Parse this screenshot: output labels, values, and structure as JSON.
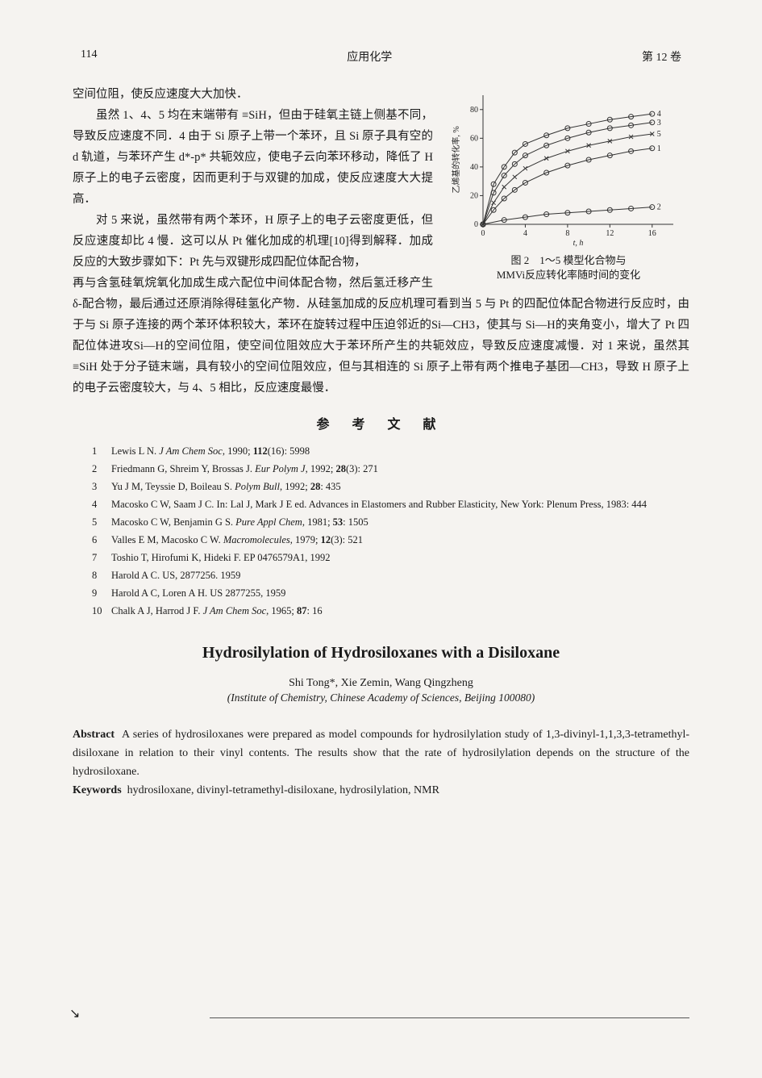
{
  "header": {
    "page": "114",
    "journal": "应用化学",
    "volume": "第 12 卷"
  },
  "paragraphs": {
    "p1": "空间位阻，使反应速度大大加快．",
    "p2": "虽然 1、4、5 均在末端带有 ≡SiH，但由于硅氧主链上侧基不同，导致反应速度不同．4 由于 Si 原子上带一个苯环，且 Si 原子具有空的 d 轨道，与苯环产生 d*-p* 共轭效应，使电子云向苯环移动，降低了 H 原子上的电子云密度，因而更利于与双键的加成，使反应速度大大提高．",
    "p3_left": "对 5 来说，虽然带有两个苯环，H 原子上的电子云密度更低，但反应速度却比 4 慢．这可以从 Pt 催化加成的机理[10]得到解释．加成反应的大致步骤如下：Pt 先与双键形成四配位体配合物，",
    "p3_full": "再与含氢硅氧烷氧化加成生成六配位中间体配合物，然后氢迁移产生 δ-配合物，最后通过还原消除得硅氢化产物．从硅氢加成的反应机理可看到当 5 与 Pt 的四配位体配合物进行反应时，由于与 Si 原子连接的两个苯环体积较大，苯环在旋转过程中压迫邻近的Si—CH3，使其与 Si—H的夹角变小，增大了 Pt 四配位体进攻Si—H的空间位阻，使空间位阻效应大于苯环所产生的共轭效应，导致反应速度减慢．对 1 来说，虽然其 ≡SiH 处于分子链末端，具有较小的空间位阻效应，但与其相连的 Si 原子上带有两个推电子基团—CH3，导致 H 原子上的电子云密度较大，与 4、5 相比，反应速度最慢．"
  },
  "figure": {
    "caption_line1": "图 2　1～5 模型化合物与",
    "caption_line2": "MMVi反应转化率随时间的变化",
    "xlabel": "t, h",
    "ylabel": "乙烯基的转化率, %",
    "xlim": [
      0,
      18
    ],
    "xticks": [
      0,
      4,
      8,
      12,
      16
    ],
    "ylim": [
      0,
      90
    ],
    "yticks": [
      0,
      20,
      40,
      60,
      80
    ],
    "axis_color": "#333333",
    "text_color": "#222222",
    "background": "#f5f3f0",
    "line_color": "#333333",
    "marker_size": 3,
    "tick_fontsize": 10,
    "label_fontsize": 10,
    "series": [
      {
        "label": "4",
        "x": [
          0,
          1,
          2,
          3,
          4,
          6,
          8,
          10,
          12,
          14,
          16
        ],
        "y": [
          0,
          28,
          40,
          50,
          56,
          62,
          67,
          70,
          73,
          75,
          77
        ],
        "marker": "circle"
      },
      {
        "label": "3",
        "x": [
          0,
          1,
          2,
          3,
          4,
          6,
          8,
          10,
          12,
          14,
          16
        ],
        "y": [
          0,
          22,
          34,
          42,
          48,
          55,
          60,
          64,
          67,
          69,
          71
        ],
        "marker": "circle"
      },
      {
        "label": "5",
        "x": [
          0,
          1,
          2,
          3,
          4,
          6,
          8,
          10,
          12,
          14,
          16
        ],
        "y": [
          0,
          15,
          26,
          33,
          39,
          46,
          51,
          55,
          58,
          61,
          63
        ],
        "marker": "x"
      },
      {
        "label": "1",
        "x": [
          0,
          1,
          2,
          3,
          4,
          6,
          8,
          10,
          12,
          14,
          16
        ],
        "y": [
          0,
          10,
          18,
          24,
          29,
          36,
          41,
          45,
          48,
          51,
          53
        ],
        "marker": "circle"
      },
      {
        "label": "2",
        "x": [
          0,
          2,
          4,
          6,
          8,
          10,
          12,
          14,
          16
        ],
        "y": [
          0,
          3,
          5,
          7,
          8,
          9,
          10,
          11,
          12
        ],
        "marker": "circle"
      }
    ]
  },
  "refs_title": "参 考 文 献",
  "references": [
    {
      "n": "1",
      "text": "Lewis L N. <i>J Am Chem Soc</i>, 1990; <b>112</b>(16): 5998"
    },
    {
      "n": "2",
      "text": "Friedmann G, Shreim Y, Brossas J. <i>Eur Polym J</i>, 1992; <b>28</b>(3): 271"
    },
    {
      "n": "3",
      "text": "Yu J M, Teyssie D, Boileau S. <i>Polym Bull</i>, 1992; <b>28</b>: 435"
    },
    {
      "n": "4",
      "text": "Macosko C W, Saam J C. In: Lal J, Mark J E ed. Advances in Elastomers and Rubber Elasticity, New York: Plenum Press, 1983: 444"
    },
    {
      "n": "5",
      "text": "Macosko C W, Benjamin G S. <i>Pure Appl Chem</i>, 1981; <b>53</b>: 1505"
    },
    {
      "n": "6",
      "text": "Valles E M, Macosko C W. <i>Macromolecules</i>, 1979; <b>12</b>(3): 521"
    },
    {
      "n": "7",
      "text": "Toshio T, Hirofumi K, Hideki F. EP 0476579A1, 1992"
    },
    {
      "n": "8",
      "text": "Harold A C. US, 2877256. 1959"
    },
    {
      "n": "9",
      "text": "Harold A C, Loren A H. US 2877255, 1959"
    },
    {
      "n": "10",
      "text": "Chalk A J, Harrod J F. <i>J Am Chem Soc</i>, 1965; <b>87</b>: 16"
    }
  ],
  "english": {
    "title": "Hydrosilylation of Hydrosiloxanes with a Disiloxane",
    "authors": "Shi Tong*, Xie Zemin, Wang Qingzheng",
    "affiliation": "(Institute of Chemistry, Chinese Academy of Sciences, Beijing 100080)",
    "abstract_label": "Abstract",
    "abstract": "A series of hydrosiloxanes were prepared as model compounds for hydrosilylation study of 1,3-divinyl-1,1,3,3-tetramethyl-disiloxane in relation to their vinyl contents. The results show that the rate of hydrosilylation depends on the structure of the hydrosiloxane.",
    "keywords_label": "Keywords",
    "keywords": "hydrosiloxane, divinyl-tetramethyl-disiloxane, hydrosilylation, NMR"
  },
  "mark": "↘"
}
